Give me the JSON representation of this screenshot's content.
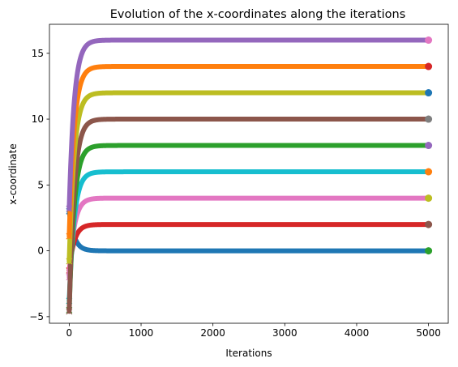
{
  "chart_data": {
    "type": "scatter",
    "title": "Evolution of the x-coordinates along the iterations",
    "xlabel": "Iterations",
    "ylabel": "x-coordinate",
    "xlim": [
      -275,
      5275
    ],
    "ylim": [
      -5.5,
      17.2
    ],
    "xticks": [
      0,
      1000,
      2000,
      3000,
      4000,
      5000
    ],
    "yticks": [
      -5,
      0,
      5,
      10,
      15
    ],
    "grid": false,
    "legend": "none",
    "series": [
      {
        "start": 3.0,
        "final": 0.0,
        "color": "#1f77b4",
        "endColor": "#2ca02c"
      },
      {
        "start": -1.5,
        "final": 2.0,
        "color": "#d62728",
        "endColor": "#8c564b"
      },
      {
        "start": -2.0,
        "final": 4.0,
        "color": "#e377c2",
        "endColor": "#bcbd22"
      },
      {
        "start": -3.8,
        "final": 6.0,
        "color": "#17becf",
        "endColor": "#ff7f0e"
      },
      {
        "start": -4.5,
        "final": 8.0,
        "color": "#2ca02c",
        "endColor": "#9467bd"
      },
      {
        "start": -4.6,
        "final": 10.0,
        "color": "#8c564b",
        "endColor": "#7f7f7f"
      },
      {
        "start": -0.8,
        "final": 12.0,
        "color": "#bcbd22",
        "endColor": "#1f77b4"
      },
      {
        "start": 1.1,
        "final": 14.0,
        "color": "#ff7f0e",
        "endColor": "#d62728"
      },
      {
        "start": 3.2,
        "final": 16.0,
        "color": "#9467bd",
        "endColor": "#e377c2"
      }
    ]
  }
}
